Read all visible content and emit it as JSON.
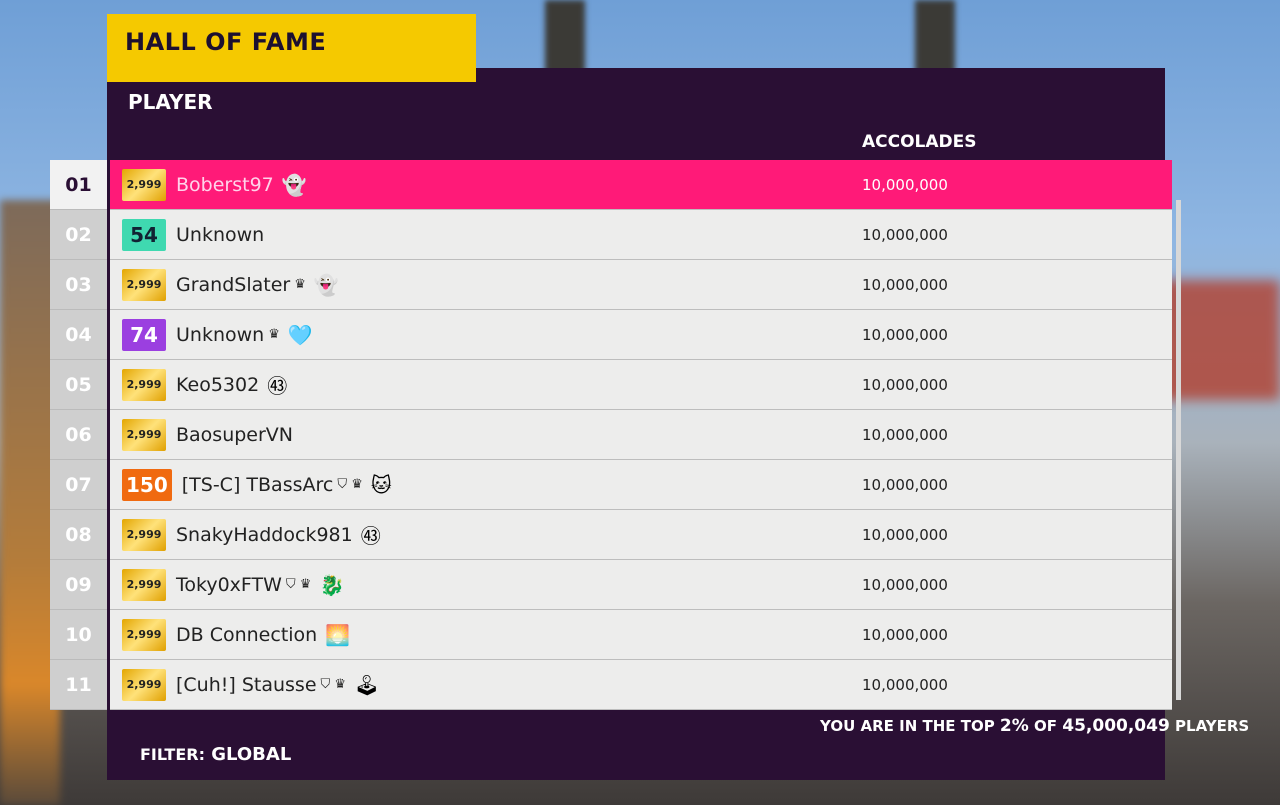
{
  "title": "HALL OF FAME",
  "header": {
    "player": "PLAYER",
    "accolades": "ACCOLADES"
  },
  "rows": [
    {
      "rank": "01",
      "badge": "2,999",
      "badge_color": "#f0b800",
      "name": "Boberst97",
      "tags": "",
      "emoji": "👻",
      "emoji_name": "ghost-icon",
      "score": "10,000,000",
      "selected": true
    },
    {
      "rank": "02",
      "badge": "54",
      "badge_color": "#3fd9b0",
      "name": "Unknown",
      "tags": "",
      "emoji": "",
      "emoji_name": "",
      "score": "10,000,000"
    },
    {
      "rank": "03",
      "badge": "2,999",
      "badge_color": "#f0b800",
      "name": "GrandSlater",
      "tags": "♛",
      "emoji": "👻",
      "emoji_name": "ghost-icon",
      "score": "10,000,000"
    },
    {
      "rank": "04",
      "badge": "74",
      "badge_color": "#9b3fe0",
      "name": "Unknown",
      "tags": "♛",
      "emoji": "🩵",
      "emoji_name": "heart-icon",
      "score": "10,000,000"
    },
    {
      "rank": "05",
      "badge": "2,999",
      "badge_color": "#f0b800",
      "name": "Keo5302",
      "tags": "",
      "emoji": "㊸",
      "emoji_name": "forza-43-icon",
      "score": "10,000,000"
    },
    {
      "rank": "06",
      "badge": "2,999",
      "badge_color": "#f0b800",
      "name": "BaosuperVN",
      "tags": "",
      "emoji": "",
      "emoji_name": "",
      "score": "10,000,000"
    },
    {
      "rank": "07",
      "badge": "150",
      "badge_color": "#f06a10",
      "name": "[TS-C] TBassArc",
      "tags": "⛉ ♛",
      "emoji": "🐱",
      "emoji_name": "cat-icon",
      "score": "10,000,000"
    },
    {
      "rank": "08",
      "badge": "2,999",
      "badge_color": "#f0b800",
      "name": "SnakyHaddock981",
      "tags": "",
      "emoji": "㊸",
      "emoji_name": "forza-43-icon",
      "score": "10,000,000"
    },
    {
      "rank": "09",
      "badge": "2,999",
      "badge_color": "#f0b800",
      "name": "Toky0xFTW",
      "tags": "⛉ ♛",
      "emoji": "🐉",
      "emoji_name": "dragon-icon",
      "score": "10,000,000"
    },
    {
      "rank": "10",
      "badge": "2,999",
      "badge_color": "#f0b800",
      "name": "DB Connection",
      "tags": "",
      "emoji": "🌅",
      "emoji_name": "sunset-icon",
      "score": "10,000,000"
    },
    {
      "rank": "11",
      "badge": "2,999",
      "badge_color": "#f0b800",
      "name": "[Cuh!] Stausse",
      "tags": "⛉ ♛",
      "emoji": "🕹",
      "emoji_name": "joystick-icon",
      "score": "10,000,000"
    }
  ],
  "footer": {
    "top_prefix": "YOU ARE IN THE TOP ",
    "top_percent": "2%",
    "top_mid": " OF ",
    "total_players": "45,000,049",
    "top_suffix": " PLAYERS",
    "filter_label": "FILTER:",
    "filter_value": "GLOBAL"
  },
  "colors": {
    "accent": "#ff1a78",
    "panel": "#2a0f34",
    "title_bg": "#f5c900"
  }
}
